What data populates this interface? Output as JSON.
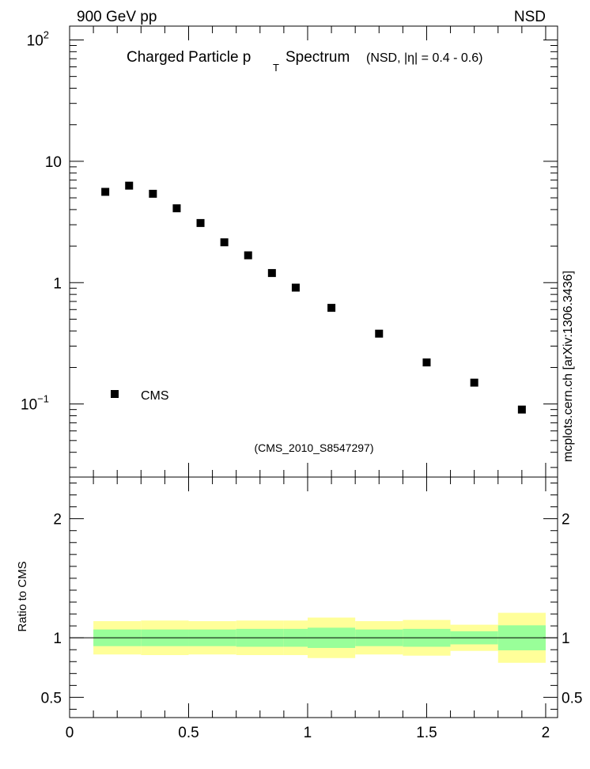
{
  "header": {
    "left": "900 GeV pp",
    "right": "NSD"
  },
  "watermark": "mcplots.cern.ch [arXiv:1306.3436]",
  "colors": {
    "band_outer": "#ffff99",
    "band_inner": "#99ff99",
    "marker": "#000000",
    "line": "#000000",
    "ref_text": "#999999"
  },
  "chart_data": [
    {
      "type": "scatter",
      "panel": "main",
      "title_main": "Charged Particle p",
      "title_sub": "T",
      "title_tail": "Spectrum",
      "title_extra": "(NSD, |η| = 0.4 - 0.6)",
      "yscale": "log",
      "ylim": [
        0.025,
        130
      ],
      "xlim": [
        0,
        2.05
      ],
      "ytick_labels": [
        {
          "value": 100,
          "base": "10",
          "exp": "2"
        },
        {
          "value": 10,
          "base": "10",
          "exp": ""
        },
        {
          "value": 1,
          "base": "1",
          "exp": ""
        },
        {
          "value": 0.1,
          "base": "10",
          "exp": "−1"
        }
      ],
      "legend": {
        "label": "CMS",
        "position": "lower-left"
      },
      "reference": "(CMS_2010_S8547297)",
      "series": [
        {
          "name": "CMS",
          "x": [
            0.15,
            0.25,
            0.35,
            0.45,
            0.55,
            0.65,
            0.75,
            0.85,
            0.95,
            1.1,
            1.3,
            1.5,
            1.7,
            1.9
          ],
          "y": [
            5.6,
            6.3,
            5.4,
            4.1,
            3.1,
            2.15,
            1.68,
            1.2,
            0.91,
            0.62,
            0.38,
            0.22,
            0.15,
            0.09
          ]
        }
      ]
    },
    {
      "type": "area",
      "panel": "ratio",
      "ylabel": "Ratio to CMS",
      "ylim": [
        0.33,
        2.35
      ],
      "xlim": [
        0,
        2.05
      ],
      "yticks": [
        0.5,
        1,
        2
      ],
      "ytick_labels": [
        "0.5",
        "1",
        "2"
      ],
      "xticks": [
        0,
        0.5,
        1,
        1.5,
        2
      ],
      "xtick_labels": [
        "0",
        "0.5",
        "1",
        "1.5",
        "2"
      ],
      "bins": [
        {
          "lo": 0.1,
          "hi": 0.3,
          "outer": [
            0.86,
            1.14
          ],
          "inner": [
            0.93,
            1.07
          ]
        },
        {
          "lo": 0.3,
          "hi": 0.5,
          "outer": [
            0.855,
            1.145
          ],
          "inner": [
            0.93,
            1.07
          ]
        },
        {
          "lo": 0.5,
          "hi": 0.7,
          "outer": [
            0.86,
            1.14
          ],
          "inner": [
            0.93,
            1.07
          ]
        },
        {
          "lo": 0.7,
          "hi": 0.9,
          "outer": [
            0.855,
            1.145
          ],
          "inner": [
            0.925,
            1.075
          ]
        },
        {
          "lo": 0.9,
          "hi": 1.0,
          "outer": [
            0.855,
            1.145
          ],
          "inner": [
            0.925,
            1.075
          ]
        },
        {
          "lo": 1.0,
          "hi": 1.2,
          "outer": [
            0.83,
            1.17
          ],
          "inner": [
            0.915,
            1.085
          ]
        },
        {
          "lo": 1.2,
          "hi": 1.4,
          "outer": [
            0.86,
            1.14
          ],
          "inner": [
            0.93,
            1.07
          ]
        },
        {
          "lo": 1.4,
          "hi": 1.6,
          "outer": [
            0.85,
            1.15
          ],
          "inner": [
            0.925,
            1.075
          ]
        },
        {
          "lo": 1.6,
          "hi": 1.8,
          "outer": [
            0.89,
            1.11
          ],
          "inner": [
            0.945,
            1.055
          ]
        },
        {
          "lo": 1.8,
          "hi": 2.0,
          "outer": [
            0.79,
            1.21
          ],
          "inner": [
            0.895,
            1.105
          ]
        }
      ],
      "reference_line": 1
    }
  ]
}
